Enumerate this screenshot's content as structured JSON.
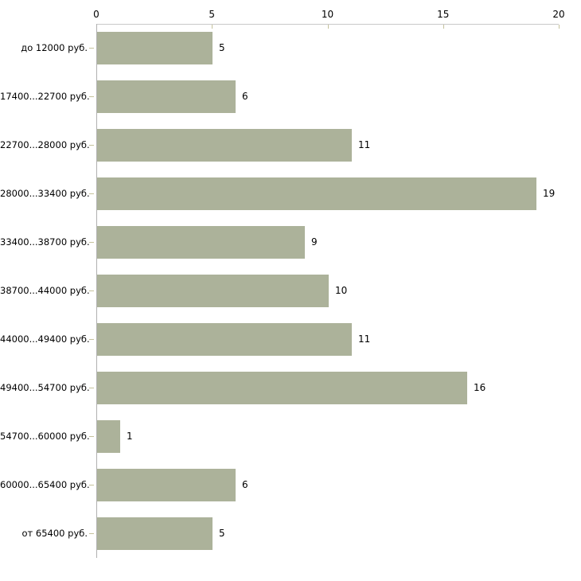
{
  "chart_data": {
    "type": "bar",
    "orientation": "horizontal",
    "title": "",
    "xlabel": "",
    "ylabel": "",
    "categories": [
      "до 12000 руб.",
      "17400...22700 руб.",
      "22700...28000 руб.",
      "28000...33400 руб.",
      "33400...38700 руб.",
      "38700...44000 руб.",
      "44000...49400 руб.",
      "49400...54700 руб.",
      "54700...60000 руб.",
      "60000...65400 руб.",
      "от 65400 руб."
    ],
    "values": [
      5,
      6,
      11,
      19,
      9,
      10,
      11,
      16,
      1,
      6,
      5
    ],
    "value_labels": [
      "5",
      "6",
      "11",
      "19",
      "9",
      "10",
      "11",
      "16",
      "1",
      "6",
      "5"
    ],
    "xlim": [
      0,
      20
    ],
    "x_ticks": [
      "0",
      "5",
      "10",
      "15",
      "20"
    ],
    "x_tick_values": [
      0,
      5,
      10,
      15,
      20
    ],
    "axis_position": "top",
    "grid": false,
    "legend": false,
    "colors": {
      "bar_fill": "#acb29a",
      "x_axis_line": "#c9c9c9",
      "y_axis_line": "#b0b0b0",
      "tick_mark": "#c5c29c",
      "text": "#000000",
      "background": "#ffffff"
    }
  }
}
